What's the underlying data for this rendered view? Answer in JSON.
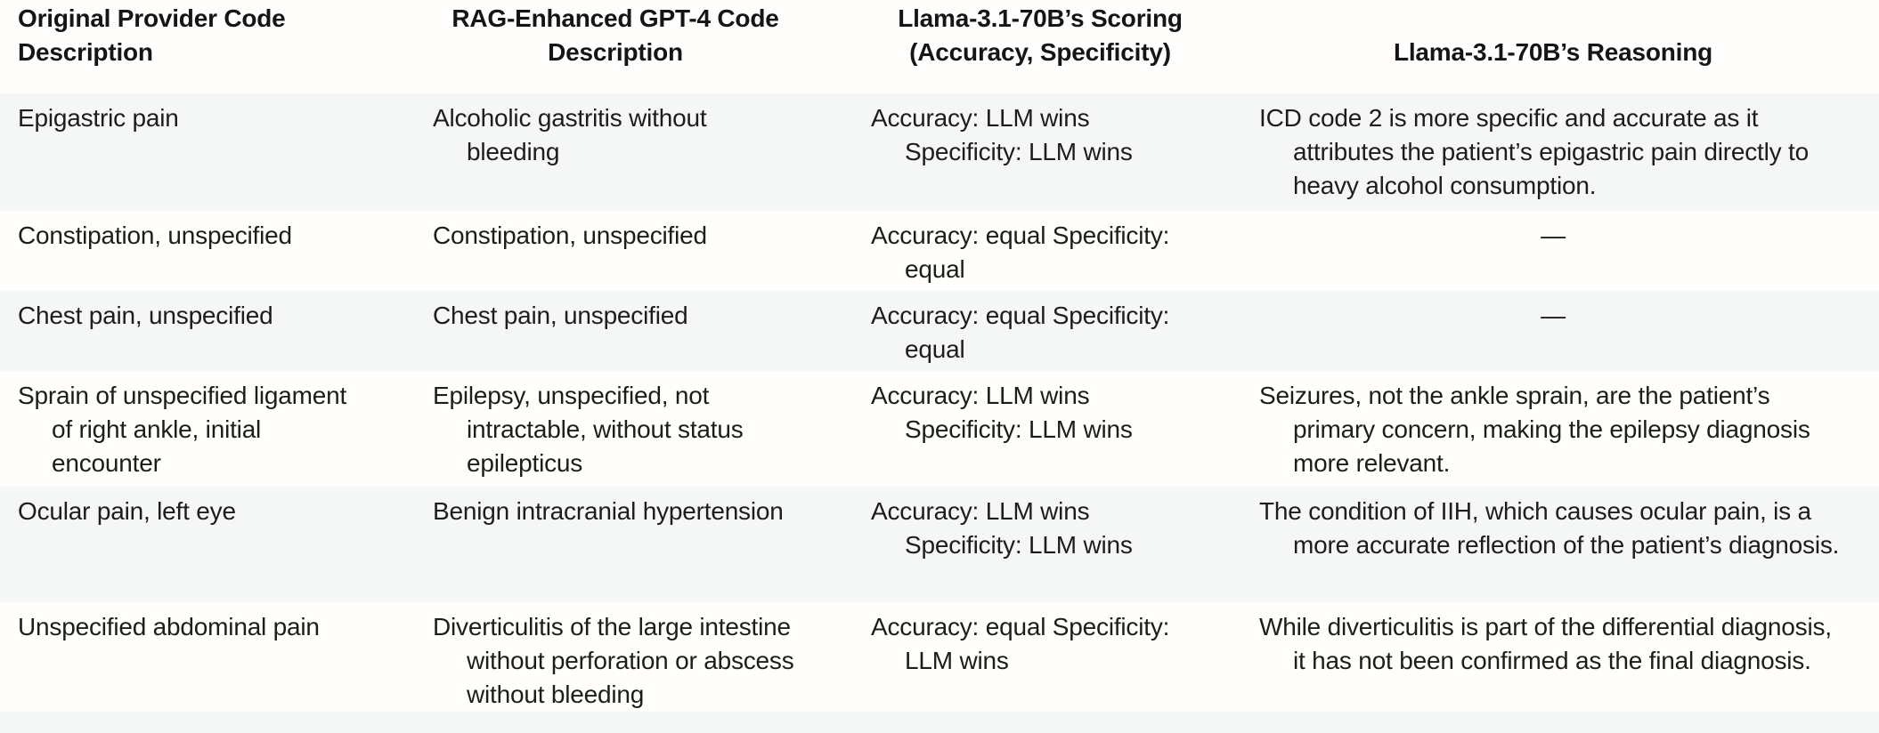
{
  "colors": {
    "row_stripe": "#f5f6f6",
    "page_background": "#fffefc",
    "text": "#1d1d1b"
  },
  "table": {
    "columns": [
      {
        "label": "Original Provider Code Description"
      },
      {
        "label": "RAG-Enhanced GPT-4 Code Description"
      },
      {
        "label": "Llama-3.1-70B’s Scoring (Accuracy, Specificity)"
      },
      {
        "label": "Llama-3.1-70B’s Reasoning"
      }
    ],
    "rows": [
      {
        "provider": "Epigastric pain",
        "gpt4": "Alcoholic gastritis without bleeding",
        "scoring": "Accuracy: LLM wins Specificity: LLM wins",
        "reasoning": "ICD code 2 is more specific and accurate as it attributes the patient’s epigastric pain directly to heavy alcohol consumption.",
        "reasoning_align": "hang"
      },
      {
        "provider": "Constipation, unspecified",
        "gpt4": "Constipation, unspecified",
        "scoring": "Accuracy: equal Specificity: equal",
        "reasoning": "—",
        "reasoning_align": "center"
      },
      {
        "provider": "Chest pain, unspecified",
        "gpt4": "Chest pain, unspecified",
        "scoring": "Accuracy: equal Specificity: equal",
        "reasoning": "—",
        "reasoning_align": "center"
      },
      {
        "provider": "Sprain of unspecified ligament of right ankle, initial encounter",
        "gpt4": "Epilepsy, unspecified, not intractable, without status epilepticus",
        "scoring": "Accuracy: LLM wins Specificity: LLM wins",
        "reasoning": "Seizures, not the ankle sprain, are the patient’s primary concern, making the epilepsy diagnosis more relevant.",
        "reasoning_align": "hang"
      },
      {
        "provider": "Ocular pain, left eye",
        "gpt4": "Benign intracranial hypertension",
        "scoring": "Accuracy: LLM wins Specificity: LLM wins",
        "reasoning": "The condition of IIH, which causes ocular pain, is a more accurate reflection of the patient’s diagnosis.",
        "reasoning_align": "hang"
      },
      {
        "provider": "Unspecified abdominal pain",
        "gpt4": "Diverticulitis of the large intestine without perforation or abscess without bleeding",
        "scoring": "Accuracy: equal Specificity: LLM wins",
        "reasoning": "While diverticulitis is part of the differential diagnosis, it has not been confirmed as the final diagnosis.",
        "reasoning_align": "hang"
      }
    ]
  }
}
